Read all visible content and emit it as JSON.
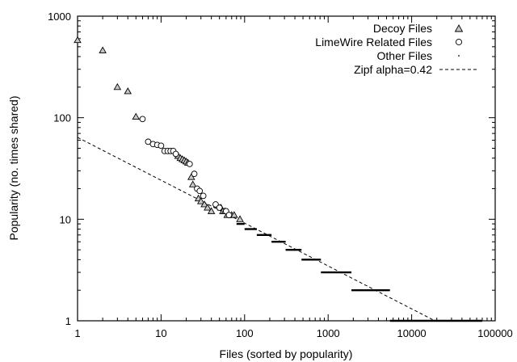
{
  "chart_data": {
    "type": "scatter",
    "title": "",
    "xlabel": "Files (sorted by popularity)",
    "ylabel": "Popularity (no. times shared)",
    "x_scale": "log",
    "y_scale": "log",
    "xlim": [
      1,
      100000
    ],
    "ylim": [
      1,
      1000
    ],
    "x_ticks": [
      {
        "value": 1,
        "label": "1"
      },
      {
        "value": 10,
        "label": "10"
      },
      {
        "value": 100,
        "label": "100"
      },
      {
        "value": 1000,
        "label": "1000"
      },
      {
        "value": 10000,
        "label": "10000"
      },
      {
        "value": 100000,
        "label": "100000"
      }
    ],
    "y_ticks": [
      {
        "value": 1,
        "label": "1"
      },
      {
        "value": 10,
        "label": "10"
      },
      {
        "value": 100,
        "label": "100"
      },
      {
        "value": 1000,
        "label": "1000"
      }
    ],
    "grid": false,
    "legend_position": "top-right",
    "series": [
      {
        "name": "Decoy Files",
        "marker": "triangle",
        "points": [
          [
            1,
            580
          ],
          [
            2,
            460
          ],
          [
            3,
            200
          ],
          [
            4,
            182
          ],
          [
            5,
            102
          ],
          [
            16,
            42
          ],
          [
            17,
            40
          ],
          [
            18,
            39
          ],
          [
            19,
            38
          ],
          [
            20,
            37
          ],
          [
            21,
            36
          ],
          [
            23,
            26
          ],
          [
            24,
            22
          ],
          [
            28,
            16
          ],
          [
            30,
            15
          ],
          [
            33,
            14
          ],
          [
            36,
            13
          ],
          [
            40,
            12
          ],
          [
            52,
            13
          ],
          [
            55,
            12
          ],
          [
            58,
            12
          ],
          [
            62,
            11
          ],
          [
            70,
            11
          ],
          [
            75,
            11
          ],
          [
            88,
            10
          ]
        ]
      },
      {
        "name": "LimeWire Related Files",
        "marker": "circle",
        "points": [
          [
            6,
            97
          ],
          [
            7,
            58
          ],
          [
            8,
            55
          ],
          [
            9,
            54
          ],
          [
            10,
            53
          ],
          [
            11,
            47
          ],
          [
            12,
            47
          ],
          [
            13,
            47
          ],
          [
            14,
            47
          ],
          [
            15,
            44
          ],
          [
            22,
            35
          ],
          [
            25,
            28
          ],
          [
            27,
            20
          ],
          [
            29,
            19
          ],
          [
            32,
            17
          ],
          [
            45,
            14
          ],
          [
            50,
            13
          ],
          [
            60,
            12
          ],
          [
            65,
            11
          ]
        ]
      },
      {
        "name": "Other Files",
        "marker": "dot",
        "segments": [
          {
            "y": 9,
            "x_from": 80,
            "x_to": 100
          },
          {
            "y": 8,
            "x_from": 100,
            "x_to": 140
          },
          {
            "y": 7,
            "x_from": 140,
            "x_to": 210
          },
          {
            "y": 6,
            "x_from": 210,
            "x_to": 310
          },
          {
            "y": 5,
            "x_from": 310,
            "x_to": 480
          },
          {
            "y": 4,
            "x_from": 480,
            "x_to": 820
          },
          {
            "y": 3,
            "x_from": 820,
            "x_to": 1900
          },
          {
            "y": 2,
            "x_from": 1900,
            "x_to": 5500
          },
          {
            "y": 1,
            "x_from": 5500,
            "x_to": 70000
          }
        ]
      },
      {
        "name": "Zipf alpha=0.42",
        "style": "dashed",
        "line": [
          [
            1,
            64
          ],
          [
            19000,
            1
          ]
        ]
      }
    ]
  }
}
